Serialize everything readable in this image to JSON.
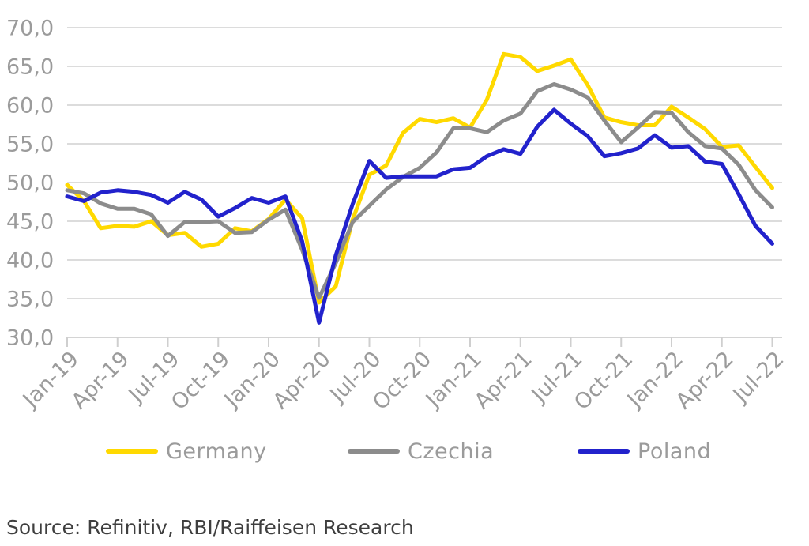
{
  "chart_data": {
    "type": "line",
    "title": "",
    "ylim": [
      30,
      70
    ],
    "y_ticks": [
      {
        "value": 70,
        "label": "70,0"
      },
      {
        "value": 65,
        "label": "65,0"
      },
      {
        "value": 60,
        "label": "60,0"
      },
      {
        "value": 55,
        "label": "55,0"
      },
      {
        "value": 50,
        "label": "50,0"
      },
      {
        "value": 45,
        "label": "45,0"
      },
      {
        "value": 40,
        "label": "40,0"
      },
      {
        "value": 35,
        "label": "35,0"
      },
      {
        "value": 30,
        "label": "30,0"
      }
    ],
    "x": [
      "Jan-19",
      "Feb-19",
      "Mar-19",
      "Apr-19",
      "May-19",
      "Jun-19",
      "Jul-19",
      "Aug-19",
      "Sep-19",
      "Oct-19",
      "Nov-19",
      "Dec-19",
      "Jan-20",
      "Feb-20",
      "Mar-20",
      "Apr-20",
      "May-20",
      "Jun-20",
      "Jul-20",
      "Aug-20",
      "Sep-20",
      "Oct-20",
      "Nov-20",
      "Dec-20",
      "Jan-21",
      "Feb-21",
      "Mar-21",
      "Apr-21",
      "May-21",
      "Jun-21",
      "Jul-21",
      "Aug-21",
      "Sep-21",
      "Oct-21",
      "Nov-21",
      "Dec-21",
      "Jan-22",
      "Feb-22",
      "Mar-22",
      "Apr-22",
      "May-22",
      "Jun-22",
      "Jul-22"
    ],
    "x_tick_step": 3,
    "x_tick_labels": [
      "Jan-19",
      "Apr-19",
      "Jul-19",
      "Oct-19",
      "Jan-20",
      "Apr-20",
      "Jul-20",
      "Oct-20",
      "Jan-21",
      "Apr-21",
      "Jul-21",
      "Oct-21",
      "Jan-22",
      "Apr-22",
      "Jul-22"
    ],
    "grid": "horizontal gridlines every 5 units",
    "legend_position": "bottom",
    "series": [
      {
        "name": "Germany",
        "color": "#FFD900",
        "values": [
          49.7,
          47.6,
          44.1,
          44.4,
          44.3,
          45.0,
          43.2,
          43.5,
          41.7,
          42.1,
          44.1,
          43.7,
          45.3,
          47.8,
          45.4,
          34.5,
          36.6,
          45.2,
          51.0,
          52.2,
          56.4,
          58.2,
          57.8,
          58.3,
          57.1,
          60.7,
          66.6,
          66.2,
          64.4,
          65.1,
          65.9,
          62.6,
          58.4,
          57.8,
          57.4,
          57.4,
          59.8,
          58.4,
          56.9,
          54.6,
          54.8,
          52.0,
          49.3
        ]
      },
      {
        "name": "Czechia",
        "color": "#8C8C8C",
        "values": [
          49.0,
          48.6,
          47.3,
          46.6,
          46.6,
          45.9,
          43.1,
          44.9,
          44.9,
          45.0,
          43.5,
          43.6,
          45.2,
          46.5,
          41.3,
          35.1,
          39.6,
          44.9,
          47.0,
          49.1,
          50.7,
          51.9,
          53.9,
          57.0,
          57.0,
          56.5,
          58.0,
          58.9,
          61.8,
          62.7,
          62.0,
          61.0,
          58.0,
          55.2,
          57.1,
          59.1,
          59.0,
          56.5,
          54.7,
          54.4,
          52.3,
          49.0,
          46.8
        ]
      },
      {
        "name": "Poland",
        "color": "#2222CC",
        "values": [
          48.2,
          47.6,
          48.7,
          49.0,
          48.8,
          48.4,
          47.4,
          48.8,
          47.8,
          45.6,
          46.7,
          48.0,
          47.4,
          48.2,
          42.4,
          31.9,
          40.6,
          47.2,
          52.8,
          50.6,
          50.8,
          50.8,
          50.8,
          51.7,
          51.9,
          53.4,
          54.3,
          53.7,
          57.2,
          59.4,
          57.6,
          56.0,
          53.4,
          53.8,
          54.4,
          56.1,
          54.5,
          54.7,
          52.7,
          52.4,
          48.5,
          44.4,
          42.1
        ]
      }
    ]
  },
  "legend": {
    "items": [
      "Germany",
      "Czechia",
      "Poland"
    ]
  },
  "source": {
    "text": "Source: Refinitiv, RBI/Raiffeisen Research"
  },
  "style": {
    "grid_color": "#DCDCDC",
    "axis_color": "#D4D4D4",
    "tick_color": "#CFCFCF",
    "axis_label_color": "#9B9B9B",
    "legend_text_color": "#9B9B9B",
    "source_text_color": "#3F3F3F",
    "background": "#FFFFFF",
    "line_width": 5
  }
}
